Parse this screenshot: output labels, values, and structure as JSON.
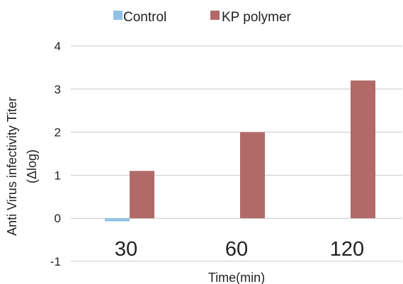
{
  "chart_data": {
    "type": "bar",
    "categories": [
      "30",
      "60",
      "120"
    ],
    "series": [
      {
        "name": "Control",
        "values": [
          -0.07,
          0,
          0
        ],
        "color": "#8ec3e6"
      },
      {
        "name": "KP polymer",
        "values": [
          1.1,
          2.0,
          3.2
        ],
        "color": "#b26a68"
      }
    ],
    "title": "",
    "xlabel": "Time(min)",
    "ylabel": "Anti Virus infectivity Titer (Δlog)",
    "ylabel_lines": [
      "Anti Virus infectivity Titer",
      "(Δlog)"
    ],
    "ylim": [
      -1,
      4
    ],
    "yticks": [
      "-1",
      "0",
      "1",
      "2",
      "3",
      "4"
    ],
    "grid": true,
    "legend_position": "top"
  },
  "colors": {
    "gridline": "#c8c8c8",
    "text": "#222222"
  }
}
